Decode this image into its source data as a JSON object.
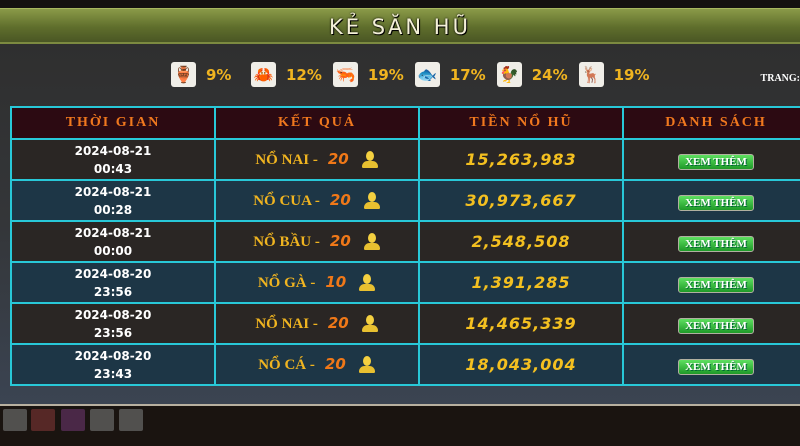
{
  "title": "KẺ SĂN HŨ",
  "page_label": "TRANG:",
  "odds": [
    {
      "icon": "gourd-icon",
      "glyph": "🏺",
      "color": "#b01010",
      "pct": "9%"
    },
    {
      "icon": "crab-icon",
      "glyph": "🦀",
      "color": "#18a030",
      "pct": "12%"
    },
    {
      "icon": "shrimp-icon",
      "glyph": "🦐",
      "color": "#20a8a0",
      "pct": "19%"
    },
    {
      "icon": "fish-icon",
      "glyph": "🐟",
      "color": "#2040c0",
      "pct": "17%"
    },
    {
      "icon": "rooster-icon",
      "glyph": "🐓",
      "color": "#a020c0",
      "pct": "24%"
    },
    {
      "icon": "deer-icon",
      "glyph": "🦌",
      "color": "#c8a030",
      "pct": "19%"
    }
  ],
  "headers": [
    "THỜI GIAN",
    "KẾT QUẢ",
    "TIỀN NỔ HŨ",
    "DANH SÁCH"
  ],
  "rows": [
    {
      "date": "2024-08-21",
      "time": "00:43",
      "result": "NỔ NAI -",
      "count": "20",
      "amount": "15,263,983",
      "action": "XEM THÊM"
    },
    {
      "date": "2024-08-21",
      "time": "00:28",
      "result": "NỔ CUA -",
      "count": "20",
      "amount": "30,973,667",
      "action": "XEM THÊM"
    },
    {
      "date": "2024-08-21",
      "time": "00:00",
      "result": "NỔ BẦU -",
      "count": "20",
      "amount": "2,548,508",
      "action": "XEM THÊM"
    },
    {
      "date": "2024-08-20",
      "time": "23:56",
      "result": "NỔ GÀ -",
      "count": "10",
      "amount": "1,391,285",
      "action": "XEM THÊM"
    },
    {
      "date": "2024-08-20",
      "time": "23:56",
      "result": "NỔ NAI -",
      "count": "20",
      "amount": "14,465,339",
      "action": "XEM THÊM"
    },
    {
      "date": "2024-08-20",
      "time": "23:43",
      "result": "NỔ CÁ -",
      "count": "20",
      "amount": "18,043,004",
      "action": "XEM THÊM"
    }
  ]
}
